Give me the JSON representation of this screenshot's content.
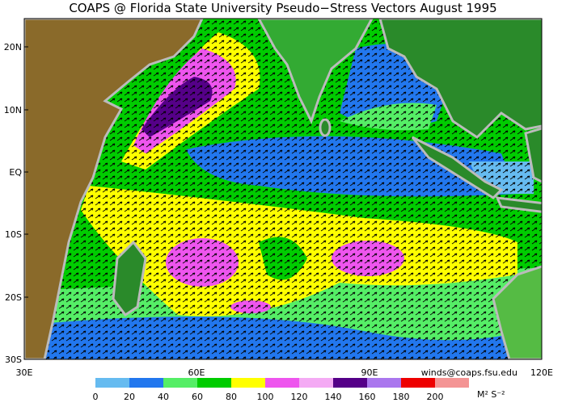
{
  "header": {
    "title": "COAPS @ Florida State University Pseudo−Stress Vectors  August 1995"
  },
  "map": {
    "lat_labels": [
      "20N",
      "10N",
      "EQ",
      "10S",
      "20S",
      "30S"
    ],
    "lon_labels": [
      "30E",
      "60E",
      "90E",
      "120E"
    ]
  },
  "colorbar": {
    "colors": [
      "#66bbf0",
      "#2277ee",
      "#55ee66",
      "#00cc00",
      "#ffff00",
      "#ee55ee",
      "#f4aaf4",
      "#550088",
      "#aa77ee",
      "#ee0000",
      "#f49494"
    ],
    "labels": [
      "0",
      "20",
      "40",
      "60",
      "80",
      "100",
      "120",
      "140",
      "160",
      "180",
      "200"
    ],
    "units": "M² S⁻²"
  },
  "credit": "winds@coaps.fsu.edu"
}
